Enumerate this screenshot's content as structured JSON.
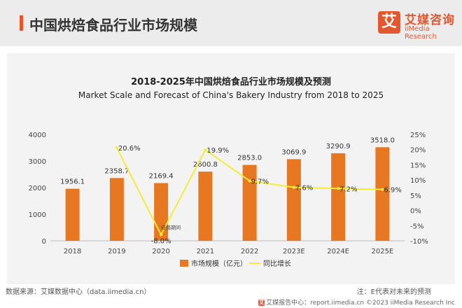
{
  "header": {
    "title": "中国烘焙食品行业市场规模",
    "logo_mark": "艾",
    "logo_cn": "艾媒咨询",
    "logo_en": "iiMedia Research"
  },
  "chart_data": {
    "type": "bar",
    "title": "2018-2025年中国烘焙食品行业市场规模及预测",
    "subtitle": "Market Scale and Forecast of China's Bakery Industry from 2018 to 2025",
    "categories": [
      "2018",
      "2019",
      "2020",
      "2021",
      "2022",
      "2023E",
      "2024E",
      "2025E"
    ],
    "series": [
      {
        "name": "市场规模（亿元）",
        "type": "bar",
        "axis": "left",
        "color": "#e87722",
        "values": [
          1956.1,
          2358.7,
          2169.4,
          2600.8,
          2853.0,
          3069.9,
          3290.9,
          3518.0
        ],
        "labels": [
          "1956.1",
          "2358.7",
          "2169.4",
          "2600.8",
          "2853.0",
          "3069.9",
          "3290.9",
          "3518.0"
        ]
      },
      {
        "name": "同比增长",
        "type": "line",
        "axis": "right",
        "color": "#f2ec3a",
        "values": [
          null,
          20.6,
          -8.0,
          19.9,
          9.7,
          7.6,
          7.2,
          6.9
        ],
        "labels": [
          "",
          "20.6%",
          "-8.0%",
          "19.9%",
          "9.7%",
          "7.6%",
          "7.2%",
          "6.9%"
        ]
      }
    ],
    "ylim": [
      0,
      4000
    ],
    "yticks": [
      "0",
      "1000",
      "2000",
      "3000",
      "4000"
    ],
    "y2lim": [
      -10,
      25
    ],
    "y2ticks": [
      "-10%",
      "-5%",
      "0%",
      "5%",
      "10%",
      "15%",
      "20%",
      "25%"
    ],
    "annotation": "疫情期间",
    "legend_position": "bottom"
  },
  "footer": {
    "source": "数据来源：艾媒数据中心（data.iimedia.cn）",
    "note": "注：E代表对未来的预测",
    "credit_mark": "艾",
    "credit": "艾媒报告中心：report.iimedia.cn    ©2023  iiMedia Research  Inc"
  }
}
